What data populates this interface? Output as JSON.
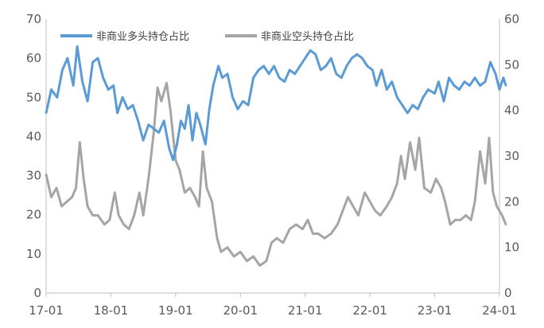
{
  "chart_data": {
    "type": "line",
    "title": "",
    "xlabel": "",
    "ylabel": "",
    "x_ticks": [
      "17-01",
      "18-01",
      "19-01",
      "20-01",
      "21-01",
      "22-01",
      "23-01",
      "24-01"
    ],
    "y_left": {
      "lim": [
        0,
        70
      ],
      "ticks": [
        0,
        10,
        20,
        30,
        40,
        50,
        60,
        70
      ]
    },
    "y_right": {
      "lim": [
        0,
        60
      ],
      "ticks": [
        0,
        10,
        20,
        30,
        40,
        50,
        60
      ]
    },
    "legend_position": "top-left",
    "grid": false,
    "series": [
      {
        "name": "非商业多头持仓占比",
        "color": "#5b9bd5",
        "axis": "left",
        "points": [
          [
            2017.0,
            46
          ],
          [
            2017.08,
            52
          ],
          [
            2017.17,
            50
          ],
          [
            2017.25,
            57
          ],
          [
            2017.33,
            60
          ],
          [
            2017.42,
            53
          ],
          [
            2017.48,
            63
          ],
          [
            2017.56,
            54
          ],
          [
            2017.64,
            49
          ],
          [
            2017.72,
            59
          ],
          [
            2017.8,
            60
          ],
          [
            2017.88,
            55
          ],
          [
            2017.96,
            52
          ],
          [
            2018.04,
            53
          ],
          [
            2018.1,
            46
          ],
          [
            2018.18,
            50
          ],
          [
            2018.26,
            47
          ],
          [
            2018.34,
            48
          ],
          [
            2018.42,
            44
          ],
          [
            2018.5,
            39
          ],
          [
            2018.58,
            43
          ],
          [
            2018.66,
            42
          ],
          [
            2018.74,
            41
          ],
          [
            2018.82,
            44
          ],
          [
            2018.9,
            37
          ],
          [
            2018.96,
            34
          ],
          [
            2019.02,
            38
          ],
          [
            2019.08,
            44
          ],
          [
            2019.14,
            42
          ],
          [
            2019.2,
            48
          ],
          [
            2019.26,
            39
          ],
          [
            2019.32,
            46
          ],
          [
            2019.38,
            43
          ],
          [
            2019.46,
            38
          ],
          [
            2019.52,
            47
          ],
          [
            2019.58,
            53
          ],
          [
            2019.66,
            58
          ],
          [
            2019.72,
            55
          ],
          [
            2019.8,
            56
          ],
          [
            2019.88,
            50
          ],
          [
            2019.96,
            47
          ],
          [
            2020.04,
            49
          ],
          [
            2020.12,
            48
          ],
          [
            2020.2,
            55
          ],
          [
            2020.28,
            57
          ],
          [
            2020.36,
            58
          ],
          [
            2020.44,
            56
          ],
          [
            2020.52,
            58
          ],
          [
            2020.6,
            55
          ],
          [
            2020.68,
            54
          ],
          [
            2020.76,
            57
          ],
          [
            2020.84,
            56
          ],
          [
            2020.92,
            58
          ],
          [
            2021.0,
            60
          ],
          [
            2021.08,
            62
          ],
          [
            2021.16,
            61
          ],
          [
            2021.24,
            57
          ],
          [
            2021.32,
            58
          ],
          [
            2021.4,
            60
          ],
          [
            2021.48,
            56
          ],
          [
            2021.56,
            55
          ],
          [
            2021.64,
            58
          ],
          [
            2021.72,
            60
          ],
          [
            2021.8,
            61
          ],
          [
            2021.88,
            60
          ],
          [
            2021.96,
            58
          ],
          [
            2022.04,
            57
          ],
          [
            2022.1,
            53
          ],
          [
            2022.18,
            57
          ],
          [
            2022.26,
            52
          ],
          [
            2022.34,
            54
          ],
          [
            2022.42,
            50
          ],
          [
            2022.5,
            48
          ],
          [
            2022.58,
            46
          ],
          [
            2022.66,
            48
          ],
          [
            2022.74,
            47
          ],
          [
            2022.82,
            50
          ],
          [
            2022.9,
            52
          ],
          [
            2023.0,
            51
          ],
          [
            2023.06,
            54
          ],
          [
            2023.14,
            49
          ],
          [
            2023.22,
            55
          ],
          [
            2023.3,
            53
          ],
          [
            2023.38,
            52
          ],
          [
            2023.46,
            54
          ],
          [
            2023.54,
            53
          ],
          [
            2023.62,
            55
          ],
          [
            2023.7,
            53
          ],
          [
            2023.78,
            54
          ],
          [
            2023.86,
            59
          ],
          [
            2023.94,
            56
          ],
          [
            2024.0,
            52
          ],
          [
            2024.06,
            55
          ],
          [
            2024.1,
            53
          ]
        ]
      },
      {
        "name": "非商业空头持仓占比",
        "color": "#a5a5a5",
        "axis": "right",
        "points": [
          [
            2017.0,
            26
          ],
          [
            2017.08,
            21
          ],
          [
            2017.16,
            23
          ],
          [
            2017.24,
            19
          ],
          [
            2017.32,
            20
          ],
          [
            2017.4,
            21
          ],
          [
            2017.46,
            23
          ],
          [
            2017.52,
            33
          ],
          [
            2017.58,
            25
          ],
          [
            2017.64,
            19
          ],
          [
            2017.72,
            17
          ],
          [
            2017.8,
            17
          ],
          [
            2017.9,
            15
          ],
          [
            2017.98,
            16
          ],
          [
            2018.06,
            22
          ],
          [
            2018.12,
            17
          ],
          [
            2018.2,
            15
          ],
          [
            2018.28,
            14
          ],
          [
            2018.36,
            17
          ],
          [
            2018.44,
            22
          ],
          [
            2018.5,
            17
          ],
          [
            2018.58,
            25
          ],
          [
            2018.66,
            35
          ],
          [
            2018.72,
            45
          ],
          [
            2018.78,
            42
          ],
          [
            2018.86,
            46
          ],
          [
            2018.92,
            40
          ],
          [
            2019.0,
            29
          ],
          [
            2019.06,
            27
          ],
          [
            2019.14,
            22
          ],
          [
            2019.22,
            23
          ],
          [
            2019.3,
            21
          ],
          [
            2019.36,
            19
          ],
          [
            2019.42,
            31
          ],
          [
            2019.48,
            23
          ],
          [
            2019.56,
            20
          ],
          [
            2019.64,
            12
          ],
          [
            2019.7,
            9
          ],
          [
            2019.8,
            10
          ],
          [
            2019.9,
            8
          ],
          [
            2020.0,
            9
          ],
          [
            2020.1,
            7
          ],
          [
            2020.2,
            8
          ],
          [
            2020.3,
            6
          ],
          [
            2020.4,
            7
          ],
          [
            2020.48,
            11
          ],
          [
            2020.56,
            12
          ],
          [
            2020.66,
            11
          ],
          [
            2020.76,
            14
          ],
          [
            2020.86,
            15
          ],
          [
            2020.96,
            14
          ],
          [
            2021.04,
            16
          ],
          [
            2021.12,
            13
          ],
          [
            2021.2,
            13
          ],
          [
            2021.3,
            12
          ],
          [
            2021.4,
            13
          ],
          [
            2021.5,
            15
          ],
          [
            2021.58,
            18
          ],
          [
            2021.66,
            21
          ],
          [
            2021.74,
            19
          ],
          [
            2021.82,
            17
          ],
          [
            2021.92,
            22
          ],
          [
            2022.0,
            20
          ],
          [
            2022.08,
            18
          ],
          [
            2022.16,
            17
          ],
          [
            2022.26,
            19
          ],
          [
            2022.34,
            21
          ],
          [
            2022.42,
            24
          ],
          [
            2022.48,
            30
          ],
          [
            2022.54,
            25
          ],
          [
            2022.62,
            33
          ],
          [
            2022.7,
            27
          ],
          [
            2022.76,
            34
          ],
          [
            2022.84,
            23
          ],
          [
            2022.94,
            22
          ],
          [
            2023.02,
            25
          ],
          [
            2023.1,
            23
          ],
          [
            2023.16,
            20
          ],
          [
            2023.24,
            15
          ],
          [
            2023.32,
            16
          ],
          [
            2023.4,
            16
          ],
          [
            2023.48,
            17
          ],
          [
            2023.56,
            16
          ],
          [
            2023.62,
            20
          ],
          [
            2023.7,
            31
          ],
          [
            2023.78,
            24
          ],
          [
            2023.84,
            34
          ],
          [
            2023.9,
            22
          ],
          [
            2023.96,
            19
          ],
          [
            2024.04,
            17
          ],
          [
            2024.1,
            15
          ]
        ]
      }
    ]
  }
}
